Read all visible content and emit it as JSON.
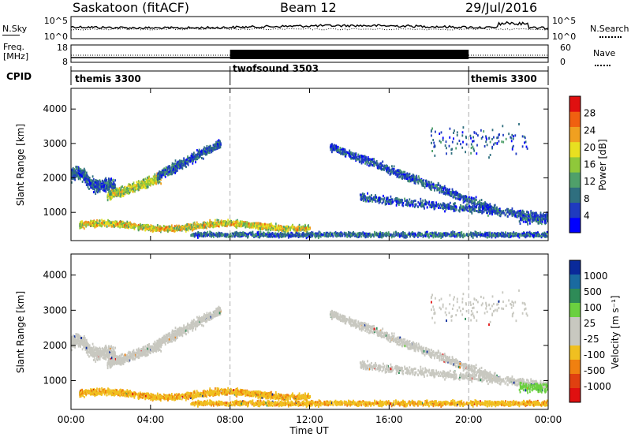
{
  "header": {
    "station": "Saskatoon (fitACF)",
    "beam": "Beam 12",
    "date": "29/Jul/2016"
  },
  "panels": {
    "nsky_label": "N.Sky",
    "nsearch_label": "N.Search",
    "nsky_ticks": [
      "10^5",
      "10^0"
    ],
    "nsearch_ticks": [
      "10^5",
      "10^0"
    ],
    "freq_label_1": "Freq.",
    "freq_label_2": "[MHz]",
    "freq_ticks": [
      "18",
      "8"
    ],
    "nave_label": "Nave",
    "nave_ticks": [
      "60",
      "0"
    ],
    "cpid_label": "CPID",
    "cpid_segments": [
      {
        "name": "themis 3300",
        "start_hour": 0,
        "end_hour": 8
      },
      {
        "name": "twofsound 3503",
        "start_hour": 8,
        "end_hour": 20
      },
      {
        "name": "themis 3300",
        "start_hour": 20,
        "end_hour": 24
      }
    ]
  },
  "colorbars": {
    "power_label": "Power [dB]",
    "power_ticks": [
      "28",
      "24",
      "20",
      "16",
      "12",
      "8",
      "4"
    ],
    "power_colors": [
      "#0000ff",
      "#1f3bbf",
      "#2f6f7f",
      "#4fa06a",
      "#8fc83a",
      "#e8e020",
      "#f0a020",
      "#f06010",
      "#e01010"
    ],
    "velocity_label": "Velocity [m s⁻¹]",
    "velocity_ticks": [
      "1000",
      "500",
      "100",
      "25",
      "-25",
      "-100",
      "-500",
      "-1000"
    ],
    "velocity_colors": [
      "#0a2a9a",
      "#1a6aa0",
      "#2e8b57",
      "#6bd040",
      "#c8c8c0",
      "#c8c8c0",
      "#f0c020",
      "#f08010",
      "#e04010",
      "#e01010"
    ]
  },
  "axes": {
    "ylabel": "Slant Range [km]",
    "xlabel": "Time UT",
    "yticks": [
      "4000",
      "3000",
      "2000",
      "1000"
    ],
    "xticks": [
      "00:00",
      "04:00",
      "08:00",
      "12:00",
      "16:00",
      "20:00",
      "00:00"
    ]
  },
  "chart_data": [
    {
      "type": "heatmap",
      "title": "Power",
      "xlabel": "Time UT",
      "ylabel": "Slant Range [km]",
      "xlim": [
        0,
        24
      ],
      "ylim": [
        180,
        4600
      ],
      "colorbar_label": "Power [dB]",
      "colorbar_range": [
        0,
        32
      ],
      "features": [
        {
          "hours": [
            0.0,
            2.0
          ],
          "km": [
            1600,
            2800
          ],
          "power_db": 12
        },
        {
          "hours": [
            2.0,
            4.5
          ],
          "km": [
            1800,
            2300
          ],
          "power_db": 20
        },
        {
          "hours": [
            4.5,
            7.5
          ],
          "km": [
            2400,
            3300
          ],
          "power_db": 10
        },
        {
          "hours": [
            0.5,
            12.0
          ],
          "km": [
            300,
            900
          ],
          "power_db": 20
        },
        {
          "hours": [
            13.0,
            22.0
          ],
          "km": [
            900,
            2800
          ],
          "power_db": 10
        },
        {
          "hours": [
            8.0,
            24.0
          ],
          "km": [
            200,
            600
          ],
          "power_db": 8
        }
      ]
    },
    {
      "type": "heatmap",
      "title": "Velocity",
      "xlabel": "Time UT",
      "ylabel": "Slant Range [km]",
      "xlim": [
        0,
        24
      ],
      "ylim": [
        180,
        4600
      ],
      "colorbar_label": "Velocity [m s⁻¹]",
      "colorbar_range": [
        -1000,
        1000
      ],
      "features": [
        {
          "hours": [
            0.0,
            7.5
          ],
          "km": [
            1600,
            3300
          ],
          "velocity": 0
        },
        {
          "hours": [
            13.0,
            22.0
          ],
          "km": [
            900,
            2800
          ],
          "velocity": 0
        },
        {
          "hours": [
            8.0,
            20.0
          ],
          "km": [
            200,
            700
          ],
          "velocity": -100
        },
        {
          "hours": [
            22.5,
            24.0
          ],
          "km": [
            500,
            1000
          ],
          "velocity": 100
        }
      ]
    }
  ]
}
